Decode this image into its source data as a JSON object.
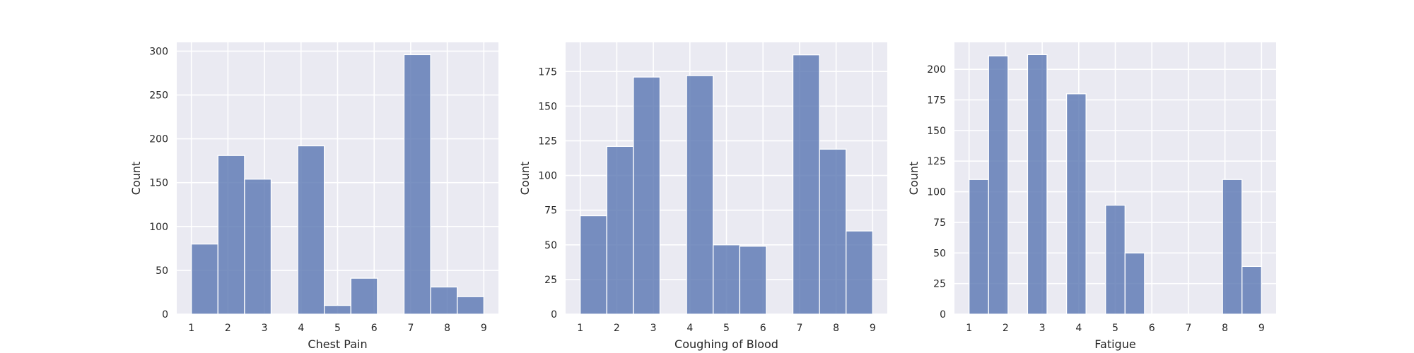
{
  "chart_data": [
    {
      "type": "bar",
      "xlabel": "Chest Pain",
      "ylabel": "Count",
      "xlim": [
        0.6,
        9.4
      ],
      "ylim": [
        0,
        310
      ],
      "xticks": [
        1,
        2,
        3,
        4,
        5,
        6,
        7,
        8,
        9
      ],
      "yticks": [
        0,
        50,
        100,
        150,
        200,
        250,
        300
      ],
      "bin_width": 0.7273,
      "bins": [
        {
          "x0": 1.0,
          "value": 80
        },
        {
          "x0": 1.7273,
          "value": 181
        },
        {
          "x0": 2.4545,
          "value": 154
        },
        {
          "x0": 3.1818,
          "value": 0
        },
        {
          "x0": 3.9091,
          "value": 192
        },
        {
          "x0": 4.6364,
          "value": 10
        },
        {
          "x0": 5.3636,
          "value": 41
        },
        {
          "x0": 6.0909,
          "value": 0
        },
        {
          "x0": 6.8182,
          "value": 296
        },
        {
          "x0": 7.5455,
          "value": 31
        },
        {
          "x0": 8.2727,
          "value": 20
        }
      ],
      "grid": true,
      "legend": "none"
    },
    {
      "type": "bar",
      "xlabel": "Coughing of Blood",
      "ylabel": "Count",
      "xlim": [
        0.6,
        9.4
      ],
      "ylim": [
        0,
        196
      ],
      "xticks": [
        1,
        2,
        3,
        4,
        5,
        6,
        7,
        8,
        9
      ],
      "yticks": [
        0,
        25,
        50,
        75,
        100,
        125,
        150,
        175
      ],
      "bin_width": 0.7273,
      "bins": [
        {
          "x0": 1.0,
          "value": 71
        },
        {
          "x0": 1.7273,
          "value": 121
        },
        {
          "x0": 2.4545,
          "value": 171
        },
        {
          "x0": 3.1818,
          "value": 0
        },
        {
          "x0": 3.9091,
          "value": 172
        },
        {
          "x0": 4.6364,
          "value": 50
        },
        {
          "x0": 5.3636,
          "value": 49
        },
        {
          "x0": 6.0909,
          "value": 0
        },
        {
          "x0": 6.8182,
          "value": 187
        },
        {
          "x0": 7.5455,
          "value": 119
        },
        {
          "x0": 8.2727,
          "value": 60
        }
      ],
      "grid": true,
      "legend": "none"
    },
    {
      "type": "bar",
      "xlabel": "Fatigue",
      "ylabel": "Count",
      "xlim": [
        0.6,
        9.4
      ],
      "ylim": [
        0,
        222
      ],
      "xticks": [
        1,
        2,
        3,
        4,
        5,
        6,
        7,
        8,
        9
      ],
      "yticks": [
        0,
        25,
        50,
        75,
        100,
        125,
        150,
        175,
        200
      ],
      "bin_width": 0.5333,
      "bins": [
        {
          "x0": 1.0,
          "value": 110
        },
        {
          "x0": 1.5333,
          "value": 211
        },
        {
          "x0": 2.0667,
          "value": 0
        },
        {
          "x0": 2.6,
          "value": 212
        },
        {
          "x0": 3.1333,
          "value": 0
        },
        {
          "x0": 3.6667,
          "value": 180
        },
        {
          "x0": 4.2,
          "value": 0
        },
        {
          "x0": 4.7333,
          "value": 89
        },
        {
          "x0": 5.2667,
          "value": 50
        },
        {
          "x0": 5.8,
          "value": 0
        },
        {
          "x0": 6.3333,
          "value": 0
        },
        {
          "x0": 6.8667,
          "value": 0
        },
        {
          "x0": 7.4,
          "value": 0
        },
        {
          "x0": 7.9333,
          "value": 110
        },
        {
          "x0": 8.4667,
          "value": 39
        }
      ],
      "grid": true,
      "legend": "none"
    }
  ]
}
